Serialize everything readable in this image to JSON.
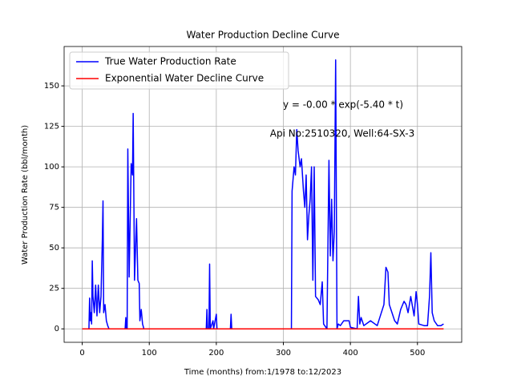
{
  "chart_data": {
    "type": "line",
    "title": "Water Production Decline Curve",
    "xlabel": "Time (months) from:1/1978 to:12/2023",
    "ylabel": "Water Production Rate (bbl/month)",
    "annotations": [
      "y = -0.00 * exp(-5.40 * t)",
      "Api No:2510320, Well:64-SX-3"
    ],
    "xlim": [
      -27,
      566
    ],
    "ylim": [
      -8.3,
      174.3
    ],
    "xticks": [
      0,
      100,
      200,
      300,
      400,
      500
    ],
    "yticks": [
      0,
      25,
      50,
      75,
      100,
      125,
      150
    ],
    "grid": true,
    "legend": "upper left",
    "series": [
      {
        "name": "True Water Production Rate",
        "color": "#0000ff",
        "x": [
          0,
          10,
          11,
          12,
          13,
          14,
          15,
          16,
          18,
          20,
          22,
          24,
          26,
          28,
          30,
          31,
          32,
          34,
          36,
          38,
          40,
          64,
          65,
          66,
          67,
          68,
          70,
          73,
          75,
          76,
          78,
          80,
          81,
          83,
          85,
          86,
          88,
          90,
          92,
          185,
          186,
          187,
          188,
          189,
          190,
          191,
          195,
          196,
          200,
          201,
          221,
          222,
          223,
          312,
          313,
          316,
          318,
          320,
          322,
          325,
          327,
          330,
          332,
          334,
          336,
          338,
          340,
          342,
          344,
          346,
          348,
          352,
          355,
          358,
          360,
          365,
          368,
          370,
          372,
          374,
          376,
          378,
          380,
          382,
          385,
          390,
          398,
          400,
          410,
          412,
          414,
          416,
          420,
          430,
          440,
          450,
          453,
          456,
          458,
          462,
          466,
          470,
          475,
          480,
          483,
          486,
          490,
          495,
          498,
          500,
          502,
          510,
          515,
          518,
          520,
          522,
          525,
          530,
          535,
          539
        ],
        "values": [
          0,
          0,
          19,
          5,
          10,
          3,
          42,
          20,
          10,
          27,
          8,
          27,
          10,
          20,
          55,
          79,
          10,
          15,
          5,
          2,
          0,
          0,
          7,
          0,
          0,
          111,
          32,
          102,
          95,
          133,
          30,
          56,
          68,
          30,
          28,
          5,
          12,
          3,
          0,
          0,
          12,
          0,
          0,
          0,
          40,
          0,
          5,
          0,
          9,
          0,
          0,
          9,
          0,
          0,
          85,
          100,
          95,
          123,
          110,
          100,
          105,
          85,
          75,
          95,
          55,
          70,
          80,
          100,
          30,
          100,
          20,
          18,
          15,
          29,
          3,
          0,
          104,
          45,
          80,
          42,
          60,
          166,
          0,
          3,
          2,
          5,
          5,
          1,
          0,
          20,
          3,
          7,
          2,
          5,
          2,
          15,
          38,
          35,
          15,
          10,
          5,
          3,
          12,
          17,
          15,
          10,
          20,
          8,
          23,
          15,
          3,
          2,
          2,
          20,
          47,
          10,
          5,
          2,
          2,
          3
        ]
      },
      {
        "name": "Exponential Water Decline Curve",
        "color": "#ff0000",
        "x": [
          0,
          539
        ],
        "values": [
          0,
          0
        ]
      }
    ]
  }
}
